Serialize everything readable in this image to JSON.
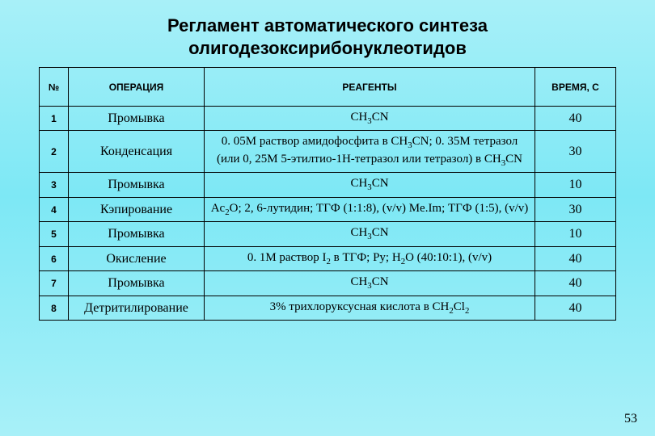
{
  "title_line1": "Регламент автоматического синтеза",
  "title_line2": "олигодезоксирибонуклеотидов",
  "columns": [
    "№",
    "ОПЕРАЦИЯ",
    "РЕАГЕНТЫ",
    "ВРЕМЯ, С"
  ],
  "rows": [
    {
      "n": "1",
      "op": "Промывка",
      "reag": "CH<sub class='sub'>3</sub>CN",
      "time": "40"
    },
    {
      "n": "2",
      "op": "Конденсация",
      "reag": "0. 05М раствор амидофосфита в CH<sub class='sub'>3</sub>CN; 0. 35М тетразол (или 0, 25М 5-этилтио-1Н-тетразол или тетразол) в CH<sub class='sub'>3</sub>CN",
      "time": "30"
    },
    {
      "n": "3",
      "op": "Промывка",
      "reag": "CH<sub class='sub'>3</sub>CN",
      "time": "10"
    },
    {
      "n": "4",
      "op": "Кэпирование",
      "reag": "Ac<sub class='sub'>2</sub>O; 2, 6-лутидин; ТГФ (1:1:8), (v/v) Me.Im; ТГФ (1:5), (v/v)",
      "time": "30"
    },
    {
      "n": "5",
      "op": "Промывка",
      "reag": "CH<sub class='sub'>3</sub>CN",
      "time": "10"
    },
    {
      "n": "6",
      "op": "Окисление",
      "reag": "0. 1М раствор I<sub class='sub'>2</sub> в ТГФ; Py; H<sub class='sub'>2</sub>O (40:10:1), (v/v)",
      "time": "40"
    },
    {
      "n": "7",
      "op": "Промывка",
      "reag": "CH<sub class='sub'>3</sub>CN",
      "time": "40"
    },
    {
      "n": "8",
      "op": "Детритилирование",
      "reag": "3% трихлоруксусная кислота в CH<sub class='sub'>2</sub>Cl<sub class='sub'>2</sub>",
      "time": "40"
    }
  ],
  "page_number": "53"
}
